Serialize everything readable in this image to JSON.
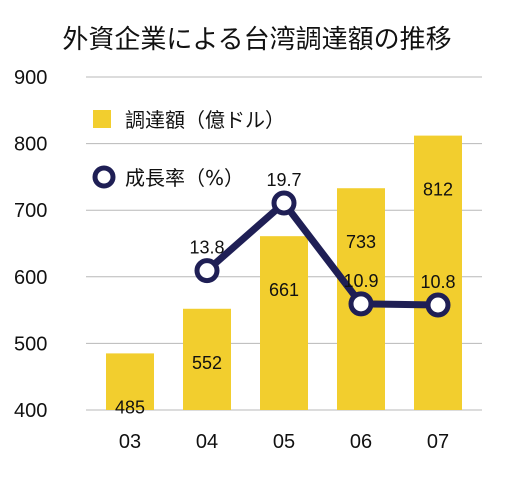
{
  "colors": {
    "bar": "#F2CE2E",
    "line": "#1F1F55",
    "grid": "#B8B8B8"
  },
  "chart_data": {
    "type": "bar",
    "title": "外資企業による台湾調達額の推移",
    "categories": [
      "03",
      "04",
      "05",
      "06",
      "07"
    ],
    "ylim": [
      400,
      900
    ],
    "yticks": [
      "400",
      "500",
      "600",
      "700",
      "800",
      "900"
    ],
    "grid": true,
    "legend_position": "top-left",
    "series": [
      {
        "name": "調達額（億ドル）",
        "type": "bar",
        "values": [
          485,
          552,
          661,
          733,
          812
        ],
        "labels": [
          "485",
          "552",
          "661",
          "733",
          "812"
        ]
      },
      {
        "name": "成長率（%）",
        "type": "line",
        "values": [
          null,
          13.8,
          19.7,
          10.9,
          10.8
        ],
        "labels": [
          null,
          "13.8",
          "19.7",
          "10.9",
          "10.8"
        ],
        "icon": "open-circle-marker-icon"
      }
    ]
  }
}
